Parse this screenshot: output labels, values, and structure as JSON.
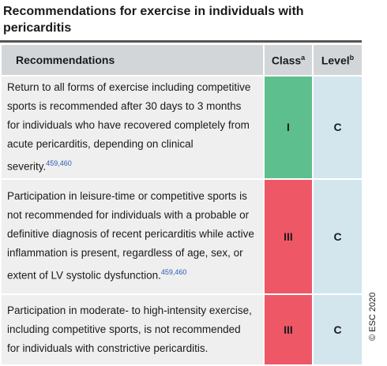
{
  "header": {
    "title": "Recommendations for exercise in individuals with pericarditis"
  },
  "table": {
    "columns": [
      {
        "label": "Recommendations"
      },
      {
        "label": "Class",
        "footnote": "a"
      },
      {
        "label": "Level",
        "footnote": "b"
      }
    ],
    "rows": [
      {
        "text": "Return to all forms of exercise including competitive sports is recommended after 30 days to 3 months for individuals who have recovered completely from acute pericarditis, depending on clinical severity.",
        "refs": "459,460",
        "class": "I",
        "level": "C"
      },
      {
        "text": "Participation in leisure-time or competitive sports is not recommended for individuals with a probable or definitive diagnosis of recent pericarditis while active inflammation is present, regardless of age, sex, or extent of LV systolic dysfunction.",
        "refs": "459,460",
        "class": "III",
        "level": "C"
      },
      {
        "text": "Participation in moderate- to high-intensity exercise, including competitive sports, is not recommended for individuals with constrictive pericarditis.",
        "class": "III",
        "level": "C"
      }
    ]
  },
  "footer": {
    "copyright": "© ESC 2020"
  }
}
